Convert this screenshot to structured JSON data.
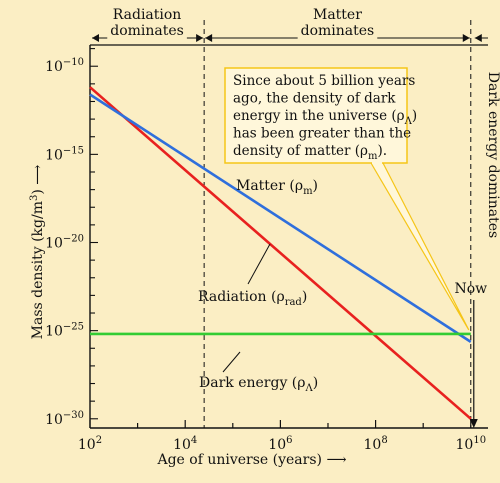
{
  "chart_data": {
    "type": "line",
    "xlabel": "Age of universe (years)",
    "ylabel": "Mass density (kg/m3)",
    "x_scale": "log",
    "y_scale": "log",
    "x_ticks": [
      {
        "value": 100,
        "base": "10",
        "exp": "2"
      },
      {
        "value": 10000,
        "base": "10",
        "exp": "4"
      },
      {
        "value": 1000000,
        "base": "10",
        "exp": "6"
      },
      {
        "value": 100000000,
        "base": "10",
        "exp": "8"
      },
      {
        "value": 10000000000,
        "base": "10",
        "exp": "10"
      }
    ],
    "y_ticks": [
      {
        "value": 1e-10,
        "base": "10",
        "exp": "−10"
      },
      {
        "value": 1e-15,
        "base": "10",
        "exp": "−15"
      },
      {
        "value": 1e-20,
        "base": "10",
        "exp": "−20"
      },
      {
        "value": 1e-25,
        "base": "10",
        "exp": "−25"
      },
      {
        "value": 1e-30,
        "base": "10",
        "exp": "−30"
      }
    ],
    "xlim": [
      100,
      23000000000
    ],
    "ylim": [
      3e-31,
      1.6e-09
    ],
    "series": [
      {
        "name": "Radiation",
        "subscript": "rad",
        "color": "#e8211f",
        "points": [
          [
            100,
            6.5e-12
          ],
          [
            10000000000,
            1e-30
          ]
        ]
      },
      {
        "name": "Matter",
        "subscript": "m",
        "color": "#2f6fdc",
        "points": [
          [
            100,
            2.5e-12
          ],
          [
            10000000000,
            2.3e-26
          ]
        ]
      },
      {
        "name": "Dark energy",
        "subscript": "Λ",
        "color": "#33cc33",
        "points": [
          [
            100,
            6.5e-26
          ],
          [
            10000000000,
            6.5e-26
          ]
        ]
      }
    ],
    "regions": [
      {
        "label_lines": [
          "Radiation",
          "dominates"
        ]
      },
      {
        "label_lines": [
          "Matter",
          "dominates"
        ]
      },
      {
        "label": "Dark energy dominates"
      }
    ],
    "now_label": "Now",
    "boundaries": [
      25000,
      10000000000
    ],
    "annotation": {
      "lines": [
        "Since about 5 billion years",
        "ago, the density of dark",
        "energy in the universe (ρΛ)",
        "has been greater than the",
        "density of matter (ρm)."
      ],
      "border_color": "#f5c518"
    }
  }
}
